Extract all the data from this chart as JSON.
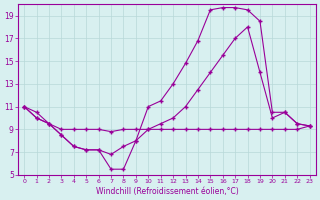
{
  "background_color": "#d8f0f0",
  "line_color": "#990099",
  "grid_color": "#b8d8d8",
  "xlabel": "Windchill (Refroidissement éolien,°C)",
  "xlim": [
    -0.5,
    23.5
  ],
  "ylim": [
    5,
    20
  ],
  "yticks": [
    5,
    7,
    9,
    11,
    13,
    15,
    17,
    19
  ],
  "xticks": [
    0,
    1,
    2,
    3,
    4,
    5,
    6,
    7,
    8,
    9,
    10,
    11,
    12,
    13,
    14,
    15,
    16,
    17,
    18,
    19,
    20,
    21,
    22,
    23
  ],
  "line1_x": [
    0,
    1,
    2,
    3,
    4,
    5,
    6,
    7,
    8,
    9,
    10,
    11,
    12,
    13,
    14,
    15,
    16,
    17,
    18,
    19,
    20,
    21,
    22,
    23
  ],
  "line1_y": [
    11.0,
    10.0,
    9.5,
    8.5,
    7.5,
    7.2,
    7.2,
    6.8,
    7.5,
    8.0,
    11.0,
    11.5,
    13.0,
    14.8,
    16.8,
    19.5,
    19.7,
    19.7,
    19.5,
    18.5,
    10.5,
    10.5,
    9.5,
    9.3
  ],
  "line2_x": [
    0,
    1,
    2,
    3,
    4,
    5,
    6,
    7,
    8,
    9,
    10,
    11,
    12,
    13,
    14,
    15,
    16,
    17,
    18,
    19,
    20,
    21,
    22,
    23
  ],
  "line2_y": [
    11.0,
    10.5,
    9.5,
    9.0,
    9.0,
    9.0,
    9.0,
    8.8,
    9.0,
    9.0,
    9.0,
    9.5,
    10.0,
    11.0,
    12.5,
    14.0,
    15.5,
    17.0,
    18.0,
    14.0,
    10.0,
    10.5,
    9.5,
    9.3
  ],
  "line3_x": [
    0,
    1,
    2,
    3,
    4,
    5,
    6,
    7,
    8,
    9,
    10,
    11,
    12,
    13,
    14,
    15,
    16,
    17,
    18,
    19,
    20,
    21,
    22,
    23
  ],
  "line3_y": [
    11.0,
    10.0,
    9.5,
    8.5,
    7.5,
    7.2,
    7.2,
    5.5,
    5.5,
    8.0,
    9.0,
    9.0,
    9.0,
    9.0,
    9.0,
    9.0,
    9.0,
    9.0,
    9.0,
    9.0,
    9.0,
    9.0,
    9.0,
    9.3
  ]
}
